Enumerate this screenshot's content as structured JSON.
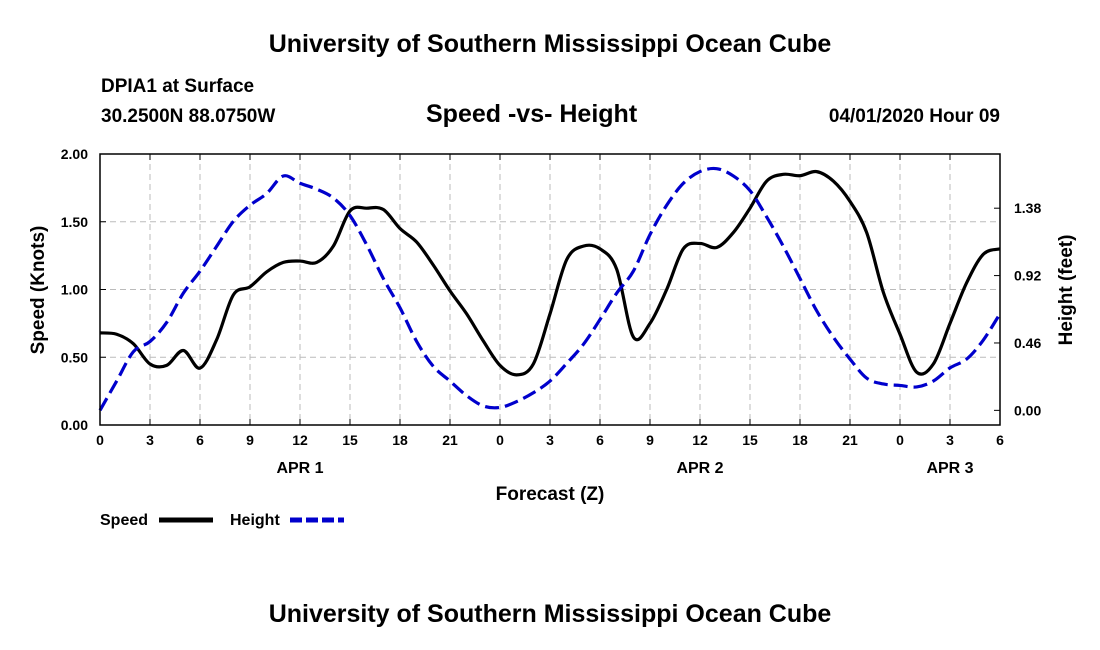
{
  "header": {
    "top_title": "University of Southern Mississippi Ocean Cube",
    "station": "DPIA1 at Surface",
    "coords": "30.2500N 88.0750W",
    "chart_title": "Speed -vs- Height",
    "date": "04/01/2020 Hour 09",
    "bottom_title": "University of Southern Mississippi Ocean Cube"
  },
  "colors": {
    "speed": "#000000",
    "height": "#0000cc",
    "grid": "#bbbbbb"
  },
  "chart_data": {
    "type": "line",
    "title": "Speed -vs- Height",
    "xlabel": "Forecast (Z)",
    "ylabel": "Speed (Knots)",
    "y2label": "Height (feet)",
    "xlim": [
      0,
      54
    ],
    "ylim": [
      0,
      2.0
    ],
    "y2lim": [
      -0.1,
      1.75
    ],
    "x_ticks": [
      0,
      3,
      6,
      9,
      12,
      15,
      18,
      21,
      24,
      27,
      30,
      33,
      36,
      39,
      42,
      45,
      48,
      51,
      54
    ],
    "x_tick_labels": [
      "0",
      "3",
      "6",
      "9",
      "12",
      "15",
      "18",
      "21",
      "0",
      "3",
      "6",
      "9",
      "12",
      "15",
      "18",
      "21",
      "0",
      "3",
      "6"
    ],
    "day_labels": [
      {
        "label": "APR 1",
        "x": 12
      },
      {
        "label": "APR 2",
        "x": 36
      },
      {
        "label": "APR 3",
        "x": 51
      }
    ],
    "y_ticks": [
      0,
      0.5,
      1.0,
      1.5,
      2.0
    ],
    "y_tick_labels": [
      "0.00",
      "0.50",
      "1.00",
      "1.50",
      "2.00"
    ],
    "y2_ticks": [
      0.0,
      0.46,
      0.92,
      1.38
    ],
    "y2_tick_labels": [
      "0.00",
      "0.46",
      "0.92",
      "1.38"
    ],
    "grid": true,
    "legend": {
      "position": "bottom-left",
      "entries": [
        "Speed",
        "Height"
      ]
    },
    "series": [
      {
        "name": "Speed",
        "axis": "left",
        "style": "solid",
        "x": [
          0,
          1,
          2,
          3,
          4,
          5,
          6,
          7,
          8,
          9,
          10,
          11,
          12,
          13,
          14,
          15,
          16,
          17,
          18,
          19,
          20,
          21,
          22,
          23,
          24,
          25,
          26,
          27,
          28,
          29,
          30,
          31,
          32,
          33,
          34,
          35,
          36,
          37,
          38,
          39,
          40,
          41,
          42,
          43,
          44,
          45,
          46,
          47,
          48,
          49,
          50,
          51,
          52,
          53,
          54
        ],
        "values": [
          0.68,
          0.67,
          0.6,
          0.45,
          0.44,
          0.55,
          0.42,
          0.63,
          0.96,
          1.02,
          1.13,
          1.2,
          1.21,
          1.2,
          1.32,
          1.58,
          1.6,
          1.59,
          1.45,
          1.35,
          1.18,
          0.99,
          0.82,
          0.62,
          0.44,
          0.37,
          0.45,
          0.82,
          1.22,
          1.32,
          1.3,
          1.15,
          0.65,
          0.75,
          1.0,
          1.3,
          1.34,
          1.31,
          1.42,
          1.6,
          1.8,
          1.85,
          1.84,
          1.87,
          1.8,
          1.65,
          1.42,
          0.98,
          0.67,
          0.39,
          0.45,
          0.75,
          1.05,
          1.26,
          1.3
        ]
      },
      {
        "name": "Height",
        "axis": "right",
        "style": "dashed",
        "x": [
          0,
          1,
          2,
          3,
          4,
          5,
          6,
          7,
          8,
          9,
          10,
          11,
          12,
          13,
          14,
          15,
          16,
          17,
          18,
          19,
          20,
          21,
          22,
          23,
          24,
          25,
          26,
          27,
          28,
          29,
          30,
          31,
          32,
          33,
          34,
          35,
          36,
          37,
          38,
          39,
          40,
          41,
          42,
          43,
          44,
          45,
          46,
          47,
          48,
          49,
          50,
          51,
          52,
          53,
          54
        ],
        "values": [
          0.0,
          0.2,
          0.4,
          0.47,
          0.6,
          0.8,
          0.95,
          1.12,
          1.29,
          1.4,
          1.48,
          1.6,
          1.55,
          1.51,
          1.45,
          1.33,
          1.13,
          0.9,
          0.7,
          0.47,
          0.3,
          0.2,
          0.1,
          0.03,
          0.02,
          0.06,
          0.12,
          0.2,
          0.32,
          0.45,
          0.62,
          0.8,
          0.95,
          1.2,
          1.4,
          1.55,
          1.63,
          1.65,
          1.6,
          1.5,
          1.32,
          1.12,
          0.9,
          0.68,
          0.5,
          0.35,
          0.22,
          0.18,
          0.17,
          0.16,
          0.2,
          0.29,
          0.35,
          0.48,
          0.66
        ]
      }
    ]
  }
}
